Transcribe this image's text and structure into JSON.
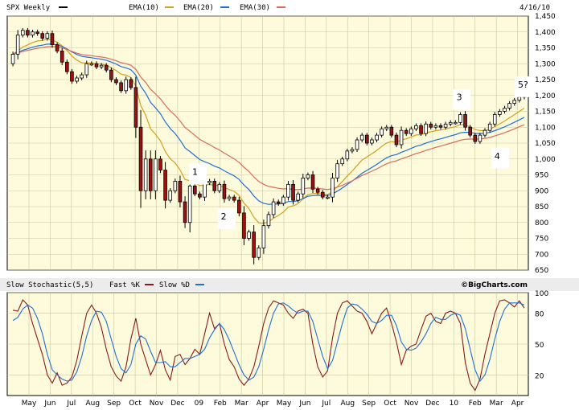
{
  "header": {
    "symbol": "SPX Weekly",
    "date": "4/16/10",
    "legend": [
      {
        "label": "EMA(10)",
        "color": "#d4a017"
      },
      {
        "label": "EMA(20)",
        "color": "#1f6fd6"
      },
      {
        "label": "EMA(30)",
        "color": "#d96a5a"
      }
    ]
  },
  "lower_header": {
    "title": "Slow Stochastic(5,5)",
    "legend": [
      {
        "label": "Fast %K",
        "color": "#8b1a1a"
      },
      {
        "label": "Slow %D",
        "color": "#1f6fd6"
      }
    ],
    "brand": "©BigCharts.com"
  },
  "colors": {
    "background": "#fdfbdc",
    "grid": "#c8c8a0",
    "up": "#ffffff",
    "down": "#a01010"
  },
  "chart_data": [
    {
      "type": "candlestick",
      "title": "SPX Weekly",
      "ylim": [
        650,
        1450
      ],
      "y_ticks": [
        650,
        700,
        750,
        800,
        850,
        900,
        950,
        1000,
        1050,
        1100,
        1150,
        1200,
        1250,
        1300,
        1350,
        1400,
        1450
      ],
      "x_tick_labels": [
        "May",
        "Jun",
        "Jul",
        "Aug",
        "Sep",
        "Oct",
        "Nov",
        "Dec",
        "09",
        "Feb",
        "Mar",
        "Apr",
        "May",
        "Jun",
        "Jul",
        "Aug",
        "Sep",
        "Oct",
        "Nov",
        "Dec",
        "10",
        "Feb",
        "Mar",
        "Apr"
      ],
      "close": [
        1330,
        1390,
        1405,
        1390,
        1400,
        1395,
        1380,
        1395,
        1360,
        1340,
        1305,
        1275,
        1245,
        1255,
        1265,
        1300,
        1300,
        1290,
        1295,
        1280,
        1250,
        1240,
        1215,
        1250,
        1225,
        1100,
        900,
        1000,
        900,
        1000,
        965,
        870,
        900,
        930,
        865,
        800,
        915,
        890,
        880,
        925,
        930,
        900,
        920,
        875,
        880,
        870,
        830,
        750,
        770,
        690,
        720,
        790,
        825,
        865,
        860,
        880,
        920,
        870,
        890,
        940,
        950,
        905,
        895,
        880,
        880,
        940,
        985,
        1000,
        1025,
        1030,
        1060,
        1075,
        1050,
        1060,
        1075,
        1095,
        1100,
        1075,
        1045,
        1090,
        1080,
        1095,
        1105,
        1080,
        1110,
        1100,
        1105,
        1100,
        1110,
        1115,
        1115,
        1140,
        1100,
        1075,
        1055,
        1075,
        1090,
        1110,
        1140,
        1150,
        1160,
        1175,
        1185,
        1195,
        1205
      ],
      "annotations": [
        {
          "label": "1",
          "value": 950
        },
        {
          "label": "2",
          "value": 810
        },
        {
          "label": "3",
          "value": 1185
        },
        {
          "label": "4",
          "value": 1000
        },
        {
          "label": "5?",
          "value": 1225
        }
      ],
      "series": [
        {
          "name": "EMA(10)",
          "period": 10
        },
        {
          "name": "EMA(20)",
          "period": 20
        },
        {
          "name": "EMA(30)",
          "period": 30
        }
      ],
      "grid": true
    },
    {
      "type": "line",
      "title": "Slow Stochastic(5,5)",
      "ylim": [
        0,
        100
      ],
      "y_ticks": [
        20,
        50,
        80,
        100
      ],
      "series": [
        {
          "name": "Fast %K",
          "values": [
            83,
            82,
            93,
            88,
            70,
            55,
            40,
            20,
            12,
            22,
            10,
            12,
            18,
            34,
            58,
            80,
            88,
            80,
            66,
            45,
            28,
            19,
            14,
            28,
            55,
            75,
            50,
            35,
            20,
            30,
            44,
            25,
            15,
            38,
            40,
            30,
            36,
            45,
            40,
            60,
            80,
            65,
            70,
            50,
            35,
            28,
            16,
            10,
            16,
            28,
            48,
            70,
            85,
            92,
            90,
            88,
            80,
            75,
            82,
            84,
            80,
            50,
            28,
            18,
            24,
            56,
            80,
            90,
            92,
            87,
            82,
            80,
            72,
            60,
            70,
            80,
            85,
            70,
            52,
            30,
            44,
            48,
            50,
            64,
            77,
            80,
            72,
            70,
            80,
            82,
            80,
            70,
            32,
            12,
            5,
            16,
            40,
            60,
            80,
            92,
            93,
            90,
            86,
            92,
            85
          ]
        },
        {
          "name": "Slow %D",
          "values": [
            73,
            76,
            84,
            88,
            85,
            75,
            60,
            40,
            25,
            20,
            16,
            14,
            15,
            23,
            38,
            58,
            73,
            82,
            81,
            72,
            55,
            38,
            26,
            22,
            30,
            50,
            58,
            55,
            43,
            32,
            32,
            33,
            28,
            28,
            32,
            36,
            36,
            38,
            40,
            45,
            56,
            64,
            70,
            64,
            54,
            42,
            30,
            20,
            15,
            18,
            28,
            45,
            64,
            80,
            89,
            90,
            87,
            83,
            80,
            82,
            82,
            72,
            55,
            38,
            26,
            34,
            52,
            70,
            85,
            89,
            88,
            84,
            79,
            72,
            70,
            73,
            78,
            78,
            68,
            52,
            45,
            44,
            46,
            52,
            60,
            70,
            76,
            74,
            74,
            78,
            80,
            78,
            65,
            45,
            25,
            14,
            20,
            35,
            55,
            72,
            84,
            90,
            90,
            90,
            88
          ]
        }
      ]
    }
  ]
}
